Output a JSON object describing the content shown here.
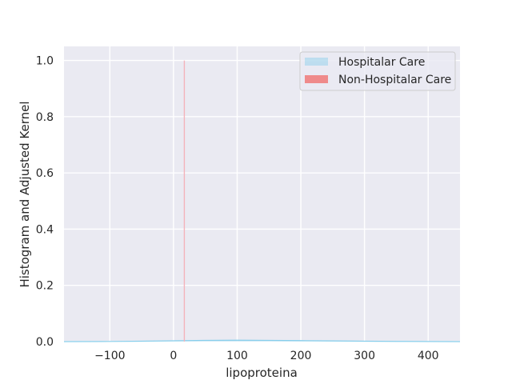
{
  "chart_data": {
    "type": "area",
    "xlabel": "lipoproteina",
    "ylabel": "Histogram and Adjusted Kernel",
    "xlim": [
      -172,
      450
    ],
    "ylim": [
      0,
      1.05
    ],
    "x_ticks": [
      -100,
      0,
      100,
      200,
      300,
      400
    ],
    "x_tick_labels": [
      "−100",
      "0",
      "100",
      "200",
      "300",
      "400"
    ],
    "y_ticks": [
      0,
      0.2,
      0.4,
      0.6,
      0.8,
      1.0
    ],
    "y_tick_labels": [
      "0.0",
      "0.2",
      "0.4",
      "0.6",
      "0.8",
      "1.0"
    ],
    "grid": true,
    "legend_position": "top-right",
    "series": [
      {
        "name": "Hospitalar Care",
        "color": "#87ceeb",
        "kind": "kde",
        "x": [
          -172,
          -100,
          -50,
          0,
          50,
          100,
          150,
          200,
          250,
          300,
          350,
          400,
          450
        ],
        "y": [
          0.0,
          0.0005,
          0.0015,
          0.003,
          0.0045,
          0.005,
          0.0045,
          0.0035,
          0.0025,
          0.0015,
          0.0008,
          0.0003,
          0.0
        ]
      },
      {
        "name": "Non-Hospitalar Care",
        "color": "#f08080",
        "kind": "spike",
        "x": [
          17,
          17
        ],
        "y": [
          0,
          1.0
        ]
      }
    ]
  }
}
